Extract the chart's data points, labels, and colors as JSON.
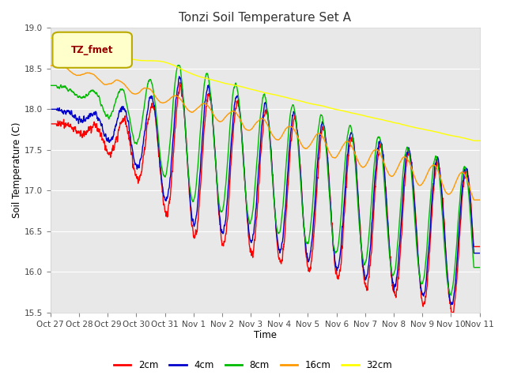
{
  "title": "Tonzi Soil Temperature Set A",
  "xlabel": "Time",
  "ylabel": "Soil Temperature (C)",
  "ylim": [
    15.5,
    19.0
  ],
  "colors": {
    "2cm": "#ff0000",
    "4cm": "#0000cc",
    "8cm": "#00bb00",
    "16cm": "#ff9900",
    "32cm": "#ffff00"
  },
  "legend_label": "TZ_fmet",
  "legend_box_facecolor": "#ffffcc",
  "legend_box_edgecolor": "#bbaa00",
  "plot_bg_color": "#e8e8e8",
  "fig_bg_color": "#ffffff",
  "grid_color": "#ffffff",
  "line_width": 1.0,
  "xtick_labels": [
    "Oct 27",
    "Oct 28",
    "Oct 29",
    "Oct 30",
    "Oct 31",
    "Nov 1",
    "Nov 2",
    "Nov 3",
    "Nov 4",
    "Nov 5",
    "Nov 6",
    "Nov 7",
    "Nov 8",
    "Nov 9",
    "Nov 10",
    "Nov 11"
  ],
  "yticks": [
    15.5,
    16.0,
    16.5,
    17.0,
    17.5,
    18.0,
    18.5,
    19.0
  ],
  "n_days": 15,
  "figsize": [
    6.4,
    4.8
  ],
  "dpi": 100
}
